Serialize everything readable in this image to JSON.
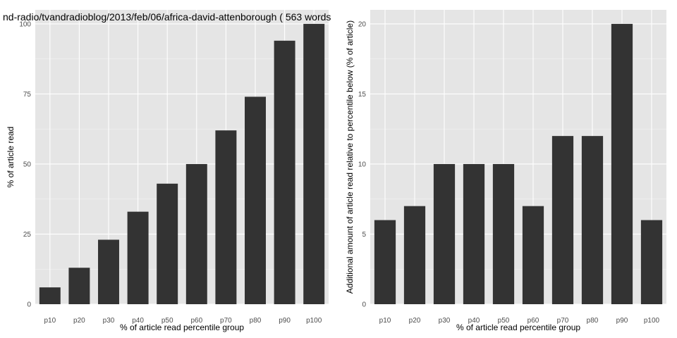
{
  "title": "nd-radio/tvandradioblog/2013/feb/06/africa-david-attenborough ( 563 words",
  "colors": {
    "panel_background": "#e5e5e5",
    "grid_major": "#ffffff",
    "grid_minor": "#f2f2f2",
    "bar_fill": "#333333",
    "tick_text": "#4d4d4d"
  },
  "chart_data": [
    {
      "type": "bar",
      "categories": [
        "p10",
        "p20",
        "p30",
        "p40",
        "p50",
        "p60",
        "p70",
        "p80",
        "p90",
        "p100"
      ],
      "values": [
        6,
        13,
        23,
        33,
        43,
        50,
        62,
        74,
        94,
        100
      ],
      "xlabel": "% of article read percentile group",
      "ylabel": "% of article read",
      "ylim": [
        0,
        105
      ],
      "yticks": [
        0,
        25,
        50,
        75,
        100
      ],
      "grid": true,
      "legend": "none"
    },
    {
      "type": "bar",
      "categories": [
        "p10",
        "p20",
        "p30",
        "p40",
        "p50",
        "p60",
        "p70",
        "p80",
        "p90",
        "p100"
      ],
      "values": [
        6,
        7,
        10,
        10,
        10,
        7,
        12,
        12,
        20,
        6
      ],
      "xlabel": "% of article read percentile group",
      "ylabel": "Additional amount of article read relative to percentile below (% of article)",
      "ylim": [
        0,
        21
      ],
      "yticks": [
        0,
        5,
        10,
        15,
        20
      ],
      "grid": true,
      "legend": "none"
    }
  ]
}
